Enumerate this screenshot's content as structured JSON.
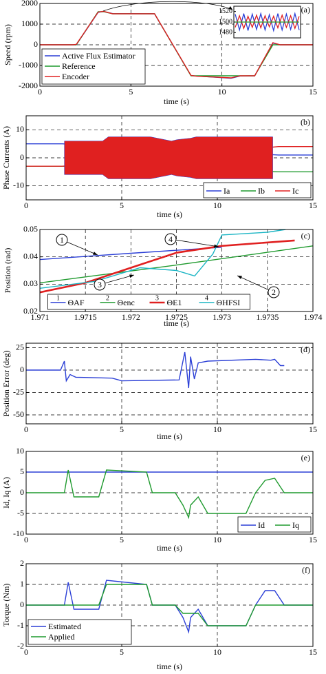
{
  "chart_data": [
    {
      "type": "line",
      "label": "(a)",
      "xlabel": "time (s)",
      "ylabel": "Speed (rpm)",
      "xlim": [
        0,
        15
      ],
      "xticks": [
        0,
        5,
        10,
        15
      ],
      "ylim": [
        -2000,
        2000
      ],
      "yticks": [
        -2000,
        -1000,
        0,
        1000,
        2000
      ],
      "grid": true,
      "legend": "lower left",
      "x": [
        0,
        1.8,
        2,
        3.2,
        3.5,
        4,
        6.3,
        8.3,
        8.6,
        10.5,
        11,
        11.8,
        12.8,
        13.2,
        15
      ],
      "series": [
        {
          "name": "Active Flux Estimator",
          "color": "#2b3fd6",
          "values": [
            0,
            0,
            0,
            1570,
            1610,
            1510,
            1500,
            -1490,
            -1510,
            -1620,
            -1510,
            -1500,
            80,
            0,
            0
          ]
        },
        {
          "name": "Reference",
          "color": "#1f9a2e",
          "values": [
            0,
            0,
            0,
            1600,
            1600,
            1500,
            1500,
            -1500,
            -1500,
            -1500,
            -1500,
            -1500,
            0,
            0,
            0
          ]
        },
        {
          "name": "Encoder",
          "color": "#e02020",
          "values": [
            0,
            0,
            20,
            1580,
            1620,
            1500,
            1500,
            -1480,
            -1520,
            -1600,
            -1500,
            -1500,
            100,
            0,
            0
          ]
        }
      ],
      "inset": {
        "ylim": [
          1470,
          1530
        ],
        "yticks": [
          1480,
          1500,
          1520
        ],
        "series": [
          {
            "color": "#2b3fd6",
            "values": [
              1515,
              1485,
              1516,
              1484,
              1515,
              1486,
              1516,
              1485,
              1514,
              1484,
              1516,
              1485,
              1515,
              1486,
              1516,
              1485
            ]
          },
          {
            "color": "#e02020",
            "values": [
              1490,
              1512,
              1488,
              1511,
              1490,
              1513,
              1489,
              1512,
              1491,
              1511,
              1489,
              1513,
              1490,
              1512,
              1488,
              1511
            ]
          },
          {
            "color": "#1f9a2e",
            "values": [
              1500,
              1500,
              1500,
              1500,
              1500,
              1500,
              1500,
              1500,
              1500,
              1500,
              1500,
              1500,
              1500,
              1500,
              1500,
              1500
            ]
          }
        ]
      }
    },
    {
      "type": "line",
      "label": "(b)",
      "xlabel": "time (s)",
      "ylabel": "Phase Currents (A)",
      "xlim": [
        0,
        15
      ],
      "xticks": [
        0,
        5,
        10,
        15
      ],
      "ylim": [
        -15,
        15
      ],
      "yticks": [
        -10,
        0,
        10
      ],
      "grid": true,
      "legend": "lower right",
      "x": [
        0,
        1.9,
        13.2,
        15
      ],
      "series": [
        {
          "name": "Ia",
          "color": "#2b3fd6",
          "values": [
            5,
            5,
            1,
            1
          ]
        },
        {
          "name": "Ib",
          "color": "#1f9a2e",
          "values": [
            -3,
            -3,
            -5,
            -5
          ]
        },
        {
          "name": "Ic",
          "color": "#e02020",
          "values": [
            -3,
            -3,
            4,
            4
          ],
          "band": {
            "x": [
              2,
              4,
              4.3,
              6.5,
              7.6,
              7.9,
              8.6,
              8.9,
              12.9
            ],
            "upper": [
              6,
              6,
              7.5,
              7.5,
              6,
              6.5,
              7,
              7.5,
              7.5
            ],
            "lower": [
              -6,
              -6,
              -7.5,
              -7.5,
              -6,
              -6.5,
              -7,
              -7.5,
              -7.5
            ]
          }
        }
      ]
    },
    {
      "type": "line",
      "label": "(c)",
      "xlabel": "time (s)",
      "ylabel": "Position (rad)",
      "xlim": [
        1.971,
        1.974
      ],
      "xticks": [
        1.971,
        1.9715,
        1.972,
        1.9725,
        1.973,
        1.9735,
        1.974
      ],
      "ylim": [
        0.02,
        0.05
      ],
      "yticks": [
        0.02,
        0.03,
        0.04,
        0.05
      ],
      "grid": true,
      "legend": "lower center",
      "annotations": [
        "1",
        "2",
        "3",
        "4"
      ],
      "series": [
        {
          "name": "ΘAF",
          "number": "1",
          "color": "#2b3fd6",
          "x": [
            1.971,
            1.972,
            1.973
          ],
          "values": [
            0.039,
            0.0413,
            0.0435
          ]
        },
        {
          "name": "Θenc",
          "number": "2",
          "color": "#1f9a2e",
          "x": [
            1.971,
            1.9725,
            1.974
          ],
          "values": [
            0.0305,
            0.037,
            0.044
          ]
        },
        {
          "name": "ΘE1",
          "number": "3",
          "color": "#e02020",
          "x": [
            1.971,
            1.9715,
            1.972,
            1.9725,
            1.973,
            1.9738
          ],
          "values": [
            0.027,
            0.0305,
            0.036,
            0.0415,
            0.044,
            0.046
          ]
        },
        {
          "name": "ΘHFSI",
          "number": "4",
          "color": "#1bb5c4",
          "x": [
            1.971,
            1.9716,
            1.9721,
            1.9725,
            1.9727,
            1.9729,
            1.973,
            1.9735,
            1.9737
          ],
          "values": [
            0.0285,
            0.031,
            0.036,
            0.035,
            0.033,
            0.041,
            0.048,
            0.049,
            0.05
          ]
        }
      ]
    },
    {
      "type": "line",
      "label": "(d)",
      "xlabel": "time (s)",
      "ylabel": "Position Error (deg)",
      "xlim": [
        0,
        15
      ],
      "xticks": [
        0,
        5,
        10,
        15
      ],
      "ylim": [
        -60,
        30
      ],
      "yticks": [
        -50,
        -25,
        0,
        25
      ],
      "grid": true,
      "x": [
        0,
        1.8,
        2,
        2.1,
        2.3,
        2.6,
        4.5,
        5,
        8,
        8.3,
        8.5,
        8.6,
        8.8,
        9,
        9.5,
        12,
        12.8,
        13,
        13.3,
        13.5
      ],
      "series": [
        {
          "color": "#2b3fd6",
          "values": [
            0,
            0,
            10,
            -12,
            -5,
            -8,
            -9,
            -12,
            -11,
            20,
            -20,
            15,
            -10,
            8,
            10,
            12,
            11,
            12,
            5,
            5
          ]
        }
      ]
    },
    {
      "type": "line",
      "label": "(e)",
      "xlabel": "time (s)",
      "ylabel": "Id, Iq (A)",
      "xlim": [
        0,
        15
      ],
      "xticks": [
        0,
        5,
        10,
        15
      ],
      "ylim": [
        -10,
        10
      ],
      "yticks": [
        -10,
        -5,
        0,
        5,
        10
      ],
      "grid": true,
      "legend": "lower right",
      "x": [
        0,
        2,
        2.2,
        2.5,
        3.8,
        4.2,
        6.3,
        6.6,
        7.8,
        8.2,
        8.5,
        8.6,
        9,
        9.5,
        11.5,
        12,
        12.5,
        13,
        13.5,
        15
      ],
      "series": [
        {
          "name": "Id",
          "color": "#2b3fd6",
          "values": [
            5,
            5,
            5,
            5,
            5,
            5,
            5,
            5,
            5,
            5,
            5,
            5,
            5,
            5,
            5,
            5,
            5,
            5,
            5,
            5
          ]
        },
        {
          "name": "Iq",
          "color": "#1f9a2e",
          "values": [
            0,
            0,
            5.5,
            -1,
            -1,
            5.5,
            5,
            0,
            0,
            -3,
            -6,
            -3,
            -1,
            -5,
            -5,
            0,
            3,
            3.5,
            0,
            0
          ]
        }
      ]
    },
    {
      "type": "line",
      "label": "(f)",
      "xlabel": "time (s)",
      "ylabel": "Torque (Nm)",
      "xlim": [
        0,
        15
      ],
      "xticks": [
        0,
        5,
        10,
        15
      ],
      "ylim": [
        -2,
        2
      ],
      "yticks": [
        -2,
        -1,
        0,
        1,
        2
      ],
      "grid": true,
      "legend": "lower left",
      "x": [
        0,
        2,
        2.2,
        2.5,
        3.8,
        4.2,
        6.3,
        6.6,
        7.8,
        8.2,
        8.5,
        8.6,
        9,
        9.5,
        11.5,
        12,
        12.5,
        13,
        13.5,
        15
      ],
      "series": [
        {
          "name": "Estimated",
          "color": "#2b3fd6",
          "values": [
            0,
            0,
            1.1,
            -0.2,
            -0.2,
            1.2,
            1,
            0,
            0,
            -0.6,
            -1.3,
            -0.6,
            -0.2,
            -1,
            -1,
            0,
            0.7,
            0.7,
            0,
            0
          ]
        },
        {
          "name": "Applied",
          "color": "#1f9a2e",
          "values": [
            0,
            0,
            0,
            0,
            0,
            1,
            1,
            0,
            0,
            -0.4,
            -0.4,
            -0.4,
            -0.4,
            -1,
            -1,
            0,
            0,
            0,
            0,
            0
          ]
        }
      ]
    }
  ]
}
